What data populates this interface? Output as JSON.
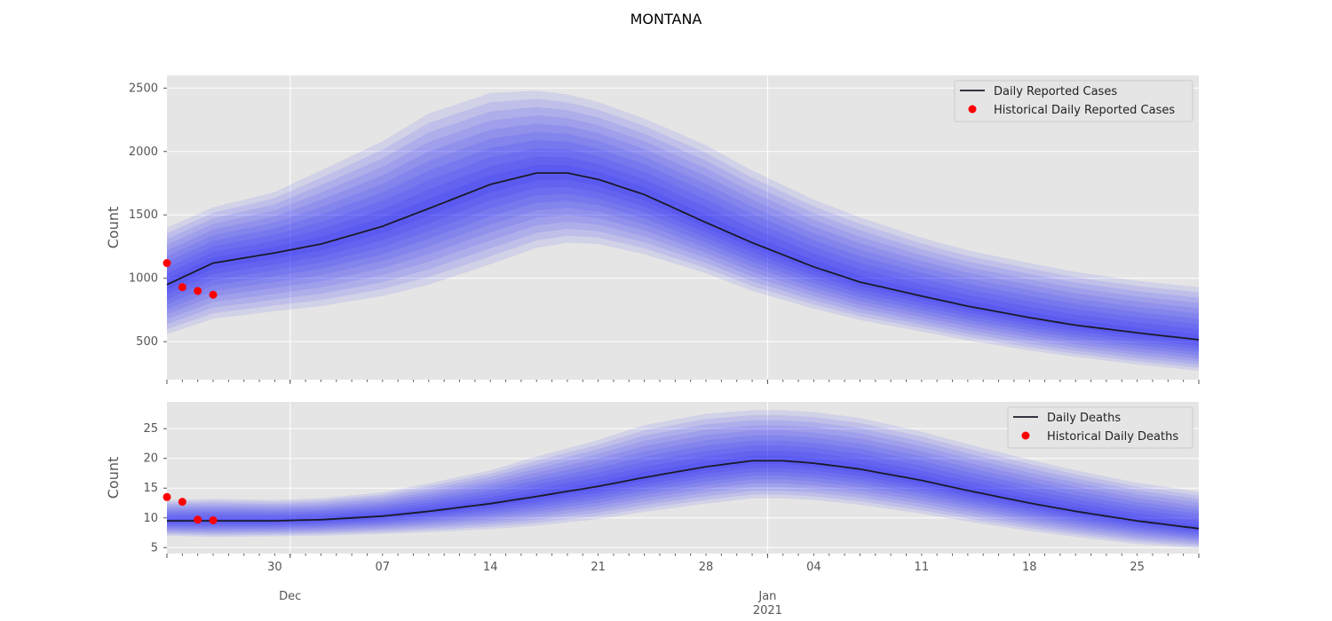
{
  "figure": {
    "title": "MONTANA",
    "background": "#e5e5e5",
    "band_color": "#0000ff",
    "line_color": "#1a1a2a",
    "point_color": "#ff0000"
  },
  "chart_data": [
    {
      "type": "line",
      "title": "",
      "xlabel": "",
      "ylabel": "Count",
      "x_domain": [
        "2020-11-23",
        "2021-01-29"
      ],
      "ylim": [
        200,
        2600
      ],
      "yticks": [
        500,
        1000,
        1500,
        2000,
        2500
      ],
      "grid": true,
      "legend_position": "top-right",
      "legend": [
        {
          "label": "Daily Reported Cases",
          "kind": "line"
        },
        {
          "label": "Historical Daily Reported Cases",
          "kind": "point"
        }
      ],
      "series": [
        {
          "name": "Daily Reported Cases",
          "points": [
            [
              "2020-11-23",
              950
            ],
            [
              "2020-11-26",
              1120
            ],
            [
              "2020-11-30",
              1200
            ],
            [
              "2020-12-03",
              1270
            ],
            [
              "2020-12-07",
              1410
            ],
            [
              "2020-12-10",
              1550
            ],
            [
              "2020-12-14",
              1740
            ],
            [
              "2020-12-17",
              1830
            ],
            [
              "2020-12-19",
              1830
            ],
            [
              "2020-12-21",
              1780
            ],
            [
              "2020-12-24",
              1660
            ],
            [
              "2020-12-28",
              1440
            ],
            [
              "2020-12-31",
              1280
            ],
            [
              "2021-01-04",
              1090
            ],
            [
              "2021-01-07",
              970
            ],
            [
              "2021-01-11",
              860
            ],
            [
              "2021-01-14",
              780
            ],
            [
              "2021-01-18",
              690
            ],
            [
              "2021-01-21",
              630
            ],
            [
              "2021-01-25",
              570
            ],
            [
              "2021-01-29",
              515
            ]
          ]
        }
      ],
      "uncertainty_band": {
        "levels": 10,
        "outer_lower": [
          [
            "2020-11-23",
            560
          ],
          [
            "2020-11-26",
            680
          ],
          [
            "2020-11-30",
            740
          ],
          [
            "2020-12-03",
            780
          ],
          [
            "2020-12-07",
            860
          ],
          [
            "2020-12-10",
            950
          ],
          [
            "2020-12-14",
            1110
          ],
          [
            "2020-12-17",
            1240
          ],
          [
            "2020-12-19",
            1280
          ],
          [
            "2020-12-21",
            1270
          ],
          [
            "2020-12-24",
            1190
          ],
          [
            "2020-12-28",
            1040
          ],
          [
            "2020-12-31",
            900
          ],
          [
            "2021-01-04",
            760
          ],
          [
            "2021-01-07",
            670
          ],
          [
            "2021-01-11",
            580
          ],
          [
            "2021-01-14",
            510
          ],
          [
            "2021-01-18",
            430
          ],
          [
            "2021-01-21",
            380
          ],
          [
            "2021-01-25",
            320
          ],
          [
            "2021-01-29",
            270
          ]
        ],
        "outer_upper": [
          [
            "2020-11-23",
            1400
          ],
          [
            "2020-11-26",
            1560
          ],
          [
            "2020-11-30",
            1680
          ],
          [
            "2020-12-03",
            1850
          ],
          [
            "2020-12-07",
            2080
          ],
          [
            "2020-12-10",
            2300
          ],
          [
            "2020-12-14",
            2460
          ],
          [
            "2020-12-17",
            2480
          ],
          [
            "2020-12-19",
            2450
          ],
          [
            "2020-12-21",
            2390
          ],
          [
            "2020-12-24",
            2260
          ],
          [
            "2020-12-28",
            2050
          ],
          [
            "2020-12-31",
            1850
          ],
          [
            "2021-01-04",
            1620
          ],
          [
            "2021-01-07",
            1480
          ],
          [
            "2021-01-11",
            1320
          ],
          [
            "2021-01-14",
            1220
          ],
          [
            "2021-01-18",
            1120
          ],
          [
            "2021-01-21",
            1050
          ],
          [
            "2021-01-25",
            980
          ],
          [
            "2021-01-29",
            930
          ]
        ]
      },
      "historical": {
        "name": "Historical Daily Reported Cases",
        "points": [
          [
            "2020-11-23",
            1120
          ],
          [
            "2020-11-24",
            930
          ],
          [
            "2020-11-25",
            900
          ],
          [
            "2020-11-26",
            870
          ]
        ]
      }
    },
    {
      "type": "line",
      "title": "",
      "xlabel": "",
      "ylabel": "Count",
      "x_domain": [
        "2020-11-23",
        "2021-01-29"
      ],
      "ylim": [
        4,
        29.5
      ],
      "yticks": [
        5,
        10,
        15,
        20,
        25
      ],
      "grid": true,
      "legend_position": "top-right",
      "legend": [
        {
          "label": "Daily Deaths",
          "kind": "line"
        },
        {
          "label": "Historical Daily Deaths",
          "kind": "point"
        }
      ],
      "series": [
        {
          "name": "Daily Deaths",
          "points": [
            [
              "2020-11-23",
              9.5
            ],
            [
              "2020-11-26",
              9.5
            ],
            [
              "2020-11-30",
              9.5
            ],
            [
              "2020-12-03",
              9.7
            ],
            [
              "2020-12-07",
              10.3
            ],
            [
              "2020-12-10",
              11.1
            ],
            [
              "2020-12-14",
              12.4
            ],
            [
              "2020-12-17",
              13.6
            ],
            [
              "2020-12-21",
              15.3
            ],
            [
              "2020-12-24",
              16.8
            ],
            [
              "2020-12-28",
              18.6
            ],
            [
              "2020-12-31",
              19.6
            ],
            [
              "2021-01-02",
              19.6
            ],
            [
              "2021-01-04",
              19.2
            ],
            [
              "2021-01-07",
              18.2
            ],
            [
              "2021-01-11",
              16.3
            ],
            [
              "2021-01-14",
              14.6
            ],
            [
              "2021-01-18",
              12.5
            ],
            [
              "2021-01-21",
              11.1
            ],
            [
              "2021-01-25",
              9.5
            ],
            [
              "2021-01-29",
              8.2
            ]
          ]
        }
      ],
      "uncertainty_band": {
        "levels": 10,
        "outer_lower": [
          [
            "2020-11-23",
            7.0
          ],
          [
            "2020-11-26",
            6.8
          ],
          [
            "2020-11-30",
            6.9
          ],
          [
            "2020-12-03",
            7.0
          ],
          [
            "2020-12-07",
            7.3
          ],
          [
            "2020-12-10",
            7.6
          ],
          [
            "2020-12-14",
            8.1
          ],
          [
            "2020-12-17",
            8.7
          ],
          [
            "2020-12-21",
            9.8
          ],
          [
            "2020-12-24",
            11.0
          ],
          [
            "2020-12-28",
            12.4
          ],
          [
            "2020-12-31",
            13.3
          ],
          [
            "2021-01-02",
            13.3
          ],
          [
            "2021-01-04",
            13.0
          ],
          [
            "2021-01-07",
            12.2
          ],
          [
            "2021-01-11",
            10.7
          ],
          [
            "2021-01-14",
            9.4
          ],
          [
            "2021-01-18",
            7.8
          ],
          [
            "2021-01-21",
            6.8
          ],
          [
            "2021-01-25",
            5.6
          ],
          [
            "2021-01-29",
            4.9
          ]
        ],
        "outer_upper": [
          [
            "2020-11-23",
            13.0
          ],
          [
            "2020-11-26",
            13.2
          ],
          [
            "2020-11-30",
            13.0
          ],
          [
            "2020-12-03",
            13.3
          ],
          [
            "2020-12-07",
            14.3
          ],
          [
            "2020-12-10",
            15.8
          ],
          [
            "2020-12-14",
            18.0
          ],
          [
            "2020-12-17",
            20.3
          ],
          [
            "2020-12-21",
            23.1
          ],
          [
            "2020-12-24",
            25.6
          ],
          [
            "2020-12-28",
            27.5
          ],
          [
            "2020-12-31",
            28.1
          ],
          [
            "2021-01-02",
            28.1
          ],
          [
            "2021-01-04",
            27.8
          ],
          [
            "2021-01-07",
            26.8
          ],
          [
            "2021-01-11",
            24.5
          ],
          [
            "2021-01-14",
            22.4
          ],
          [
            "2021-01-18",
            19.8
          ],
          [
            "2021-01-21",
            18.0
          ],
          [
            "2021-01-25",
            15.9
          ],
          [
            "2021-01-29",
            14.4
          ]
        ]
      },
      "historical": {
        "name": "Historical Daily Deaths",
        "points": [
          [
            "2020-11-23",
            13.5
          ],
          [
            "2020-11-24",
            12.7
          ],
          [
            "2020-11-25",
            9.7
          ],
          [
            "2020-11-26",
            9.6
          ]
        ]
      }
    }
  ],
  "x_axis": {
    "tick_labels": [
      {
        "date": "2020-11-30",
        "label": "30"
      },
      {
        "date": "2020-12-07",
        "label": "07"
      },
      {
        "date": "2020-12-14",
        "label": "14"
      },
      {
        "date": "2020-12-21",
        "label": "21"
      },
      {
        "date": "2020-12-28",
        "label": "28"
      },
      {
        "date": "2021-01-04",
        "label": "04"
      },
      {
        "date": "2021-01-11",
        "label": "11"
      },
      {
        "date": "2021-01-18",
        "label": "18"
      },
      {
        "date": "2021-01-25",
        "label": "25"
      }
    ],
    "month_labels": [
      {
        "date": "2020-12-01",
        "label": "Dec",
        "sub": ""
      },
      {
        "date": "2021-01-01",
        "label": "Jan",
        "sub": "2021"
      }
    ]
  }
}
